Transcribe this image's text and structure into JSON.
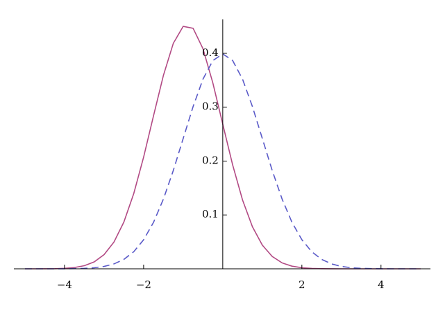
{
  "chart_data": {
    "type": "line",
    "x": [
      -5,
      -4.75,
      -4.5,
      -4.25,
      -4,
      -3.75,
      -3.5,
      -3.25,
      -3,
      -2.75,
      -2.5,
      -2.25,
      -2,
      -1.75,
      -1.5,
      -1.25,
      -1,
      -0.75,
      -0.5,
      -0.25,
      0,
      0.25,
      0.5,
      0.75,
      1,
      1.25,
      1.5,
      1.75,
      2,
      2.25,
      2.5,
      2.75,
      3,
      3.25,
      3.5,
      3.75,
      4,
      4.25,
      4.5,
      4.75,
      5
    ],
    "series": [
      {
        "color": "#b24a84",
        "dashed": false,
        "values": [
          0,
          0,
          0.0001,
          0.0003,
          0.0009,
          0.0024,
          0.0058,
          0.0128,
          0.0263,
          0.0497,
          0.0868,
          0.1397,
          0.2074,
          0.2841,
          0.3591,
          0.4186,
          0.4501,
          0.4465,
          0.4086,
          0.3449,
          0.2685,
          0.1929,
          0.1278,
          0.0781,
          0.044,
          0.0229,
          0.011,
          0.0049,
          0.002,
          0.0007,
          0.0003,
          0.0001,
          0,
          0,
          0,
          0,
          0,
          0,
          0,
          0,
          0
        ]
      },
      {
        "color": "#5a5ac8",
        "dashed": true,
        "values": [
          0,
          0,
          0,
          0,
          0.0001,
          0.0004,
          0.0009,
          0.002,
          0.0044,
          0.0091,
          0.0175,
          0.0317,
          0.054,
          0.0863,
          0.1295,
          0.1826,
          0.242,
          0.3011,
          0.3521,
          0.3867,
          0.3989,
          0.3867,
          0.3521,
          0.3011,
          0.242,
          0.1826,
          0.1295,
          0.0863,
          0.054,
          0.0317,
          0.0175,
          0.0091,
          0.0044,
          0.002,
          0.0009,
          0.0004,
          0.0001,
          0,
          0,
          0,
          0
        ]
      }
    ],
    "xlim": [
      -5.28,
      5.25
    ],
    "ylim": [
      0,
      0.463
    ],
    "xticks": [
      {
        "value": -4,
        "label": "−4"
      },
      {
        "value": -2,
        "label": "−2"
      },
      2,
      4
    ],
    "yticks": [
      0.1,
      0.2,
      0.3,
      0.4
    ]
  }
}
